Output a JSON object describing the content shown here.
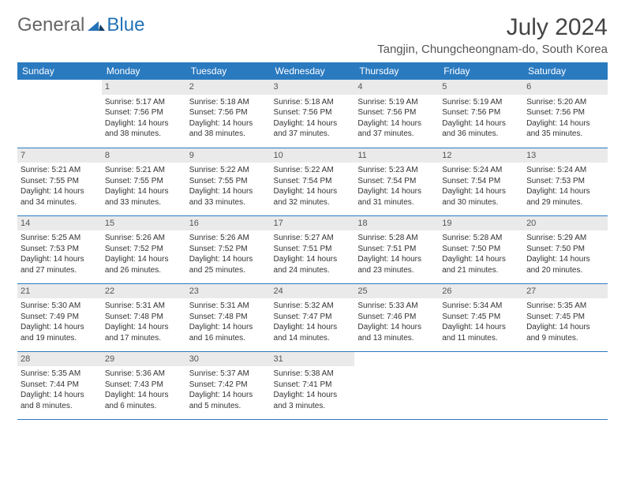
{
  "logo": {
    "part1": "General",
    "part2": "Blue"
  },
  "title": "July 2024",
  "location": "Tangjin, Chungcheongnam-do, South Korea",
  "colors": {
    "header_bg": "#2a7ac0",
    "header_text": "#ffffff",
    "daynum_bg": "#eaeaea",
    "border": "#2a7ac0",
    "logo_blue": "#2472b8",
    "body_text": "#333333"
  },
  "weekdays": [
    "Sunday",
    "Monday",
    "Tuesday",
    "Wednesday",
    "Thursday",
    "Friday",
    "Saturday"
  ],
  "weeks": [
    [
      {
        "empty": true
      },
      {
        "n": "1",
        "sr": "Sunrise: 5:17 AM",
        "ss": "Sunset: 7:56 PM",
        "d1": "Daylight: 14 hours",
        "d2": "and 38 minutes."
      },
      {
        "n": "2",
        "sr": "Sunrise: 5:18 AM",
        "ss": "Sunset: 7:56 PM",
        "d1": "Daylight: 14 hours",
        "d2": "and 38 minutes."
      },
      {
        "n": "3",
        "sr": "Sunrise: 5:18 AM",
        "ss": "Sunset: 7:56 PM",
        "d1": "Daylight: 14 hours",
        "d2": "and 37 minutes."
      },
      {
        "n": "4",
        "sr": "Sunrise: 5:19 AM",
        "ss": "Sunset: 7:56 PM",
        "d1": "Daylight: 14 hours",
        "d2": "and 37 minutes."
      },
      {
        "n": "5",
        "sr": "Sunrise: 5:19 AM",
        "ss": "Sunset: 7:56 PM",
        "d1": "Daylight: 14 hours",
        "d2": "and 36 minutes."
      },
      {
        "n": "6",
        "sr": "Sunrise: 5:20 AM",
        "ss": "Sunset: 7:56 PM",
        "d1": "Daylight: 14 hours",
        "d2": "and 35 minutes."
      }
    ],
    [
      {
        "n": "7",
        "sr": "Sunrise: 5:21 AM",
        "ss": "Sunset: 7:55 PM",
        "d1": "Daylight: 14 hours",
        "d2": "and 34 minutes."
      },
      {
        "n": "8",
        "sr": "Sunrise: 5:21 AM",
        "ss": "Sunset: 7:55 PM",
        "d1": "Daylight: 14 hours",
        "d2": "and 33 minutes."
      },
      {
        "n": "9",
        "sr": "Sunrise: 5:22 AM",
        "ss": "Sunset: 7:55 PM",
        "d1": "Daylight: 14 hours",
        "d2": "and 33 minutes."
      },
      {
        "n": "10",
        "sr": "Sunrise: 5:22 AM",
        "ss": "Sunset: 7:54 PM",
        "d1": "Daylight: 14 hours",
        "d2": "and 32 minutes."
      },
      {
        "n": "11",
        "sr": "Sunrise: 5:23 AM",
        "ss": "Sunset: 7:54 PM",
        "d1": "Daylight: 14 hours",
        "d2": "and 31 minutes."
      },
      {
        "n": "12",
        "sr": "Sunrise: 5:24 AM",
        "ss": "Sunset: 7:54 PM",
        "d1": "Daylight: 14 hours",
        "d2": "and 30 minutes."
      },
      {
        "n": "13",
        "sr": "Sunrise: 5:24 AM",
        "ss": "Sunset: 7:53 PM",
        "d1": "Daylight: 14 hours",
        "d2": "and 29 minutes."
      }
    ],
    [
      {
        "n": "14",
        "sr": "Sunrise: 5:25 AM",
        "ss": "Sunset: 7:53 PM",
        "d1": "Daylight: 14 hours",
        "d2": "and 27 minutes."
      },
      {
        "n": "15",
        "sr": "Sunrise: 5:26 AM",
        "ss": "Sunset: 7:52 PM",
        "d1": "Daylight: 14 hours",
        "d2": "and 26 minutes."
      },
      {
        "n": "16",
        "sr": "Sunrise: 5:26 AM",
        "ss": "Sunset: 7:52 PM",
        "d1": "Daylight: 14 hours",
        "d2": "and 25 minutes."
      },
      {
        "n": "17",
        "sr": "Sunrise: 5:27 AM",
        "ss": "Sunset: 7:51 PM",
        "d1": "Daylight: 14 hours",
        "d2": "and 24 minutes."
      },
      {
        "n": "18",
        "sr": "Sunrise: 5:28 AM",
        "ss": "Sunset: 7:51 PM",
        "d1": "Daylight: 14 hours",
        "d2": "and 23 minutes."
      },
      {
        "n": "19",
        "sr": "Sunrise: 5:28 AM",
        "ss": "Sunset: 7:50 PM",
        "d1": "Daylight: 14 hours",
        "d2": "and 21 minutes."
      },
      {
        "n": "20",
        "sr": "Sunrise: 5:29 AM",
        "ss": "Sunset: 7:50 PM",
        "d1": "Daylight: 14 hours",
        "d2": "and 20 minutes."
      }
    ],
    [
      {
        "n": "21",
        "sr": "Sunrise: 5:30 AM",
        "ss": "Sunset: 7:49 PM",
        "d1": "Daylight: 14 hours",
        "d2": "and 19 minutes."
      },
      {
        "n": "22",
        "sr": "Sunrise: 5:31 AM",
        "ss": "Sunset: 7:48 PM",
        "d1": "Daylight: 14 hours",
        "d2": "and 17 minutes."
      },
      {
        "n": "23",
        "sr": "Sunrise: 5:31 AM",
        "ss": "Sunset: 7:48 PM",
        "d1": "Daylight: 14 hours",
        "d2": "and 16 minutes."
      },
      {
        "n": "24",
        "sr": "Sunrise: 5:32 AM",
        "ss": "Sunset: 7:47 PM",
        "d1": "Daylight: 14 hours",
        "d2": "and 14 minutes."
      },
      {
        "n": "25",
        "sr": "Sunrise: 5:33 AM",
        "ss": "Sunset: 7:46 PM",
        "d1": "Daylight: 14 hours",
        "d2": "and 13 minutes."
      },
      {
        "n": "26",
        "sr": "Sunrise: 5:34 AM",
        "ss": "Sunset: 7:45 PM",
        "d1": "Daylight: 14 hours",
        "d2": "and 11 minutes."
      },
      {
        "n": "27",
        "sr": "Sunrise: 5:35 AM",
        "ss": "Sunset: 7:45 PM",
        "d1": "Daylight: 14 hours",
        "d2": "and 9 minutes."
      }
    ],
    [
      {
        "n": "28",
        "sr": "Sunrise: 5:35 AM",
        "ss": "Sunset: 7:44 PM",
        "d1": "Daylight: 14 hours",
        "d2": "and 8 minutes."
      },
      {
        "n": "29",
        "sr": "Sunrise: 5:36 AM",
        "ss": "Sunset: 7:43 PM",
        "d1": "Daylight: 14 hours",
        "d2": "and 6 minutes."
      },
      {
        "n": "30",
        "sr": "Sunrise: 5:37 AM",
        "ss": "Sunset: 7:42 PM",
        "d1": "Daylight: 14 hours",
        "d2": "and 5 minutes."
      },
      {
        "n": "31",
        "sr": "Sunrise: 5:38 AM",
        "ss": "Sunset: 7:41 PM",
        "d1": "Daylight: 14 hours",
        "d2": "and 3 minutes."
      },
      {
        "empty": true
      },
      {
        "empty": true
      },
      {
        "empty": true
      }
    ]
  ]
}
